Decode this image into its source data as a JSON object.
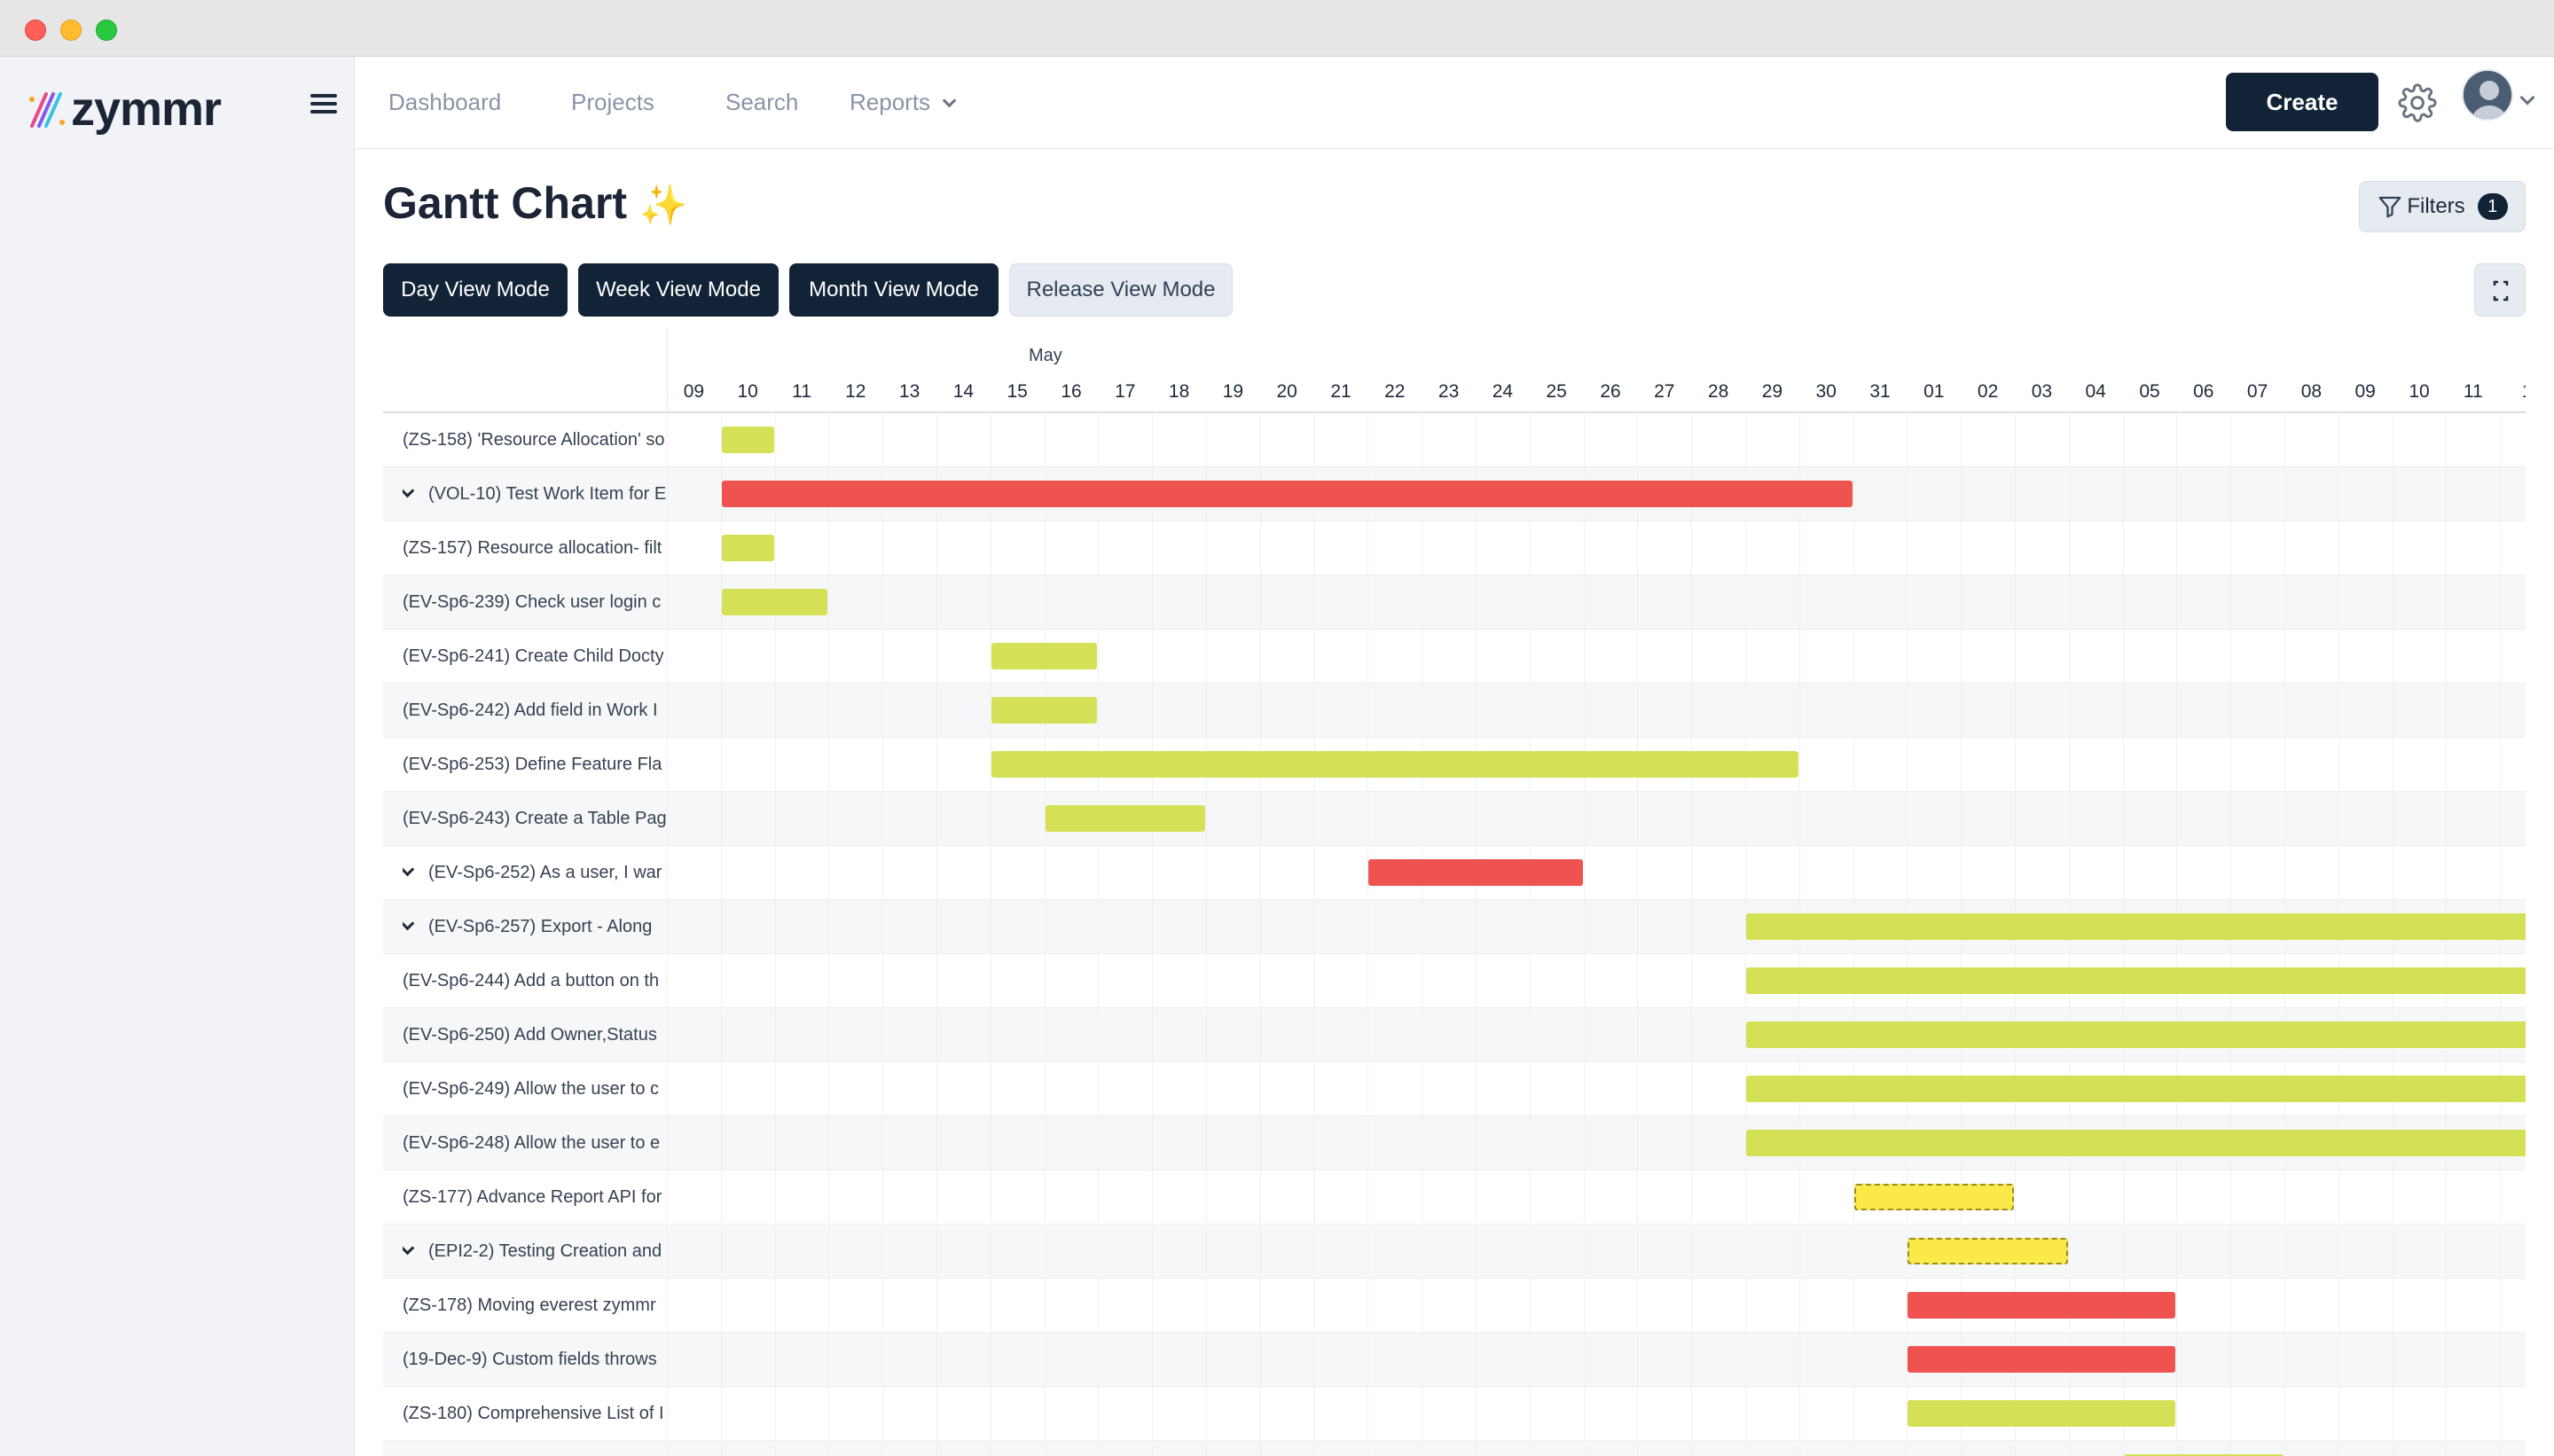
{
  "app": {
    "name": "zymmr"
  },
  "nav": {
    "dashboard": "Dashboard",
    "projects": "Projects",
    "search": "Search",
    "reports": "Reports",
    "create": "Create"
  },
  "page": {
    "title": "Gantt Chart",
    "title_emoji": "✨",
    "filters_label": "Filters",
    "filters_count": "1"
  },
  "view_modes": [
    {
      "label": "Day View Mode",
      "active": true
    },
    {
      "label": "Week View Mode",
      "active": true
    },
    {
      "label": "Month View Mode",
      "active": true
    },
    {
      "label": "Release View Mode",
      "active": false
    }
  ],
  "timeline": {
    "month": "May",
    "days": [
      "09",
      "10",
      "11",
      "12",
      "13",
      "14",
      "15",
      "16",
      "17",
      "18",
      "19",
      "20",
      "21",
      "22",
      "23",
      "24",
      "25",
      "26",
      "27",
      "28",
      "29",
      "30",
      "31",
      "01",
      "02",
      "03",
      "04",
      "05",
      "06",
      "07",
      "08",
      "09",
      "10",
      "11",
      "1"
    ]
  },
  "tasks": [
    {
      "label": "(ZS-158) 'Resource Allocation' so",
      "expandable": false,
      "start": 1,
      "end": 2,
      "color": "green"
    },
    {
      "label": "(VOL-10) Test Work Item for E",
      "expandable": true,
      "start": 1,
      "end": 22,
      "color": "red"
    },
    {
      "label": "(ZS-157) Resource allocation- filt",
      "expandable": false,
      "start": 1,
      "end": 2,
      "color": "green"
    },
    {
      "label": "(EV-Sp6-239) Check user login c",
      "expandable": false,
      "start": 1,
      "end": 3,
      "color": "green"
    },
    {
      "label": "(EV-Sp6-241) Create Child Docty",
      "expandable": false,
      "start": 6,
      "end": 8,
      "color": "green"
    },
    {
      "label": "(EV-Sp6-242) Add field in Work I",
      "expandable": false,
      "start": 6,
      "end": 8,
      "color": "green"
    },
    {
      "label": "(EV-Sp6-253) Define Feature Fla",
      "expandable": false,
      "start": 6,
      "end": 21,
      "color": "green"
    },
    {
      "label": "(EV-Sp6-243) Create a Table Pag",
      "expandable": false,
      "start": 7,
      "end": 10,
      "color": "green"
    },
    {
      "label": "(EV-Sp6-252) As a user, I war",
      "expandable": true,
      "start": 13,
      "end": 17,
      "color": "red"
    },
    {
      "label": "(EV-Sp6-257) Export - Along",
      "expandable": true,
      "start": 20,
      "end": 35,
      "color": "green"
    },
    {
      "label": "(EV-Sp6-244) Add a button on th",
      "expandable": false,
      "start": 20,
      "end": 35,
      "color": "green"
    },
    {
      "label": "(EV-Sp6-250) Add Owner,Status",
      "expandable": false,
      "start": 20,
      "end": 35,
      "color": "green"
    },
    {
      "label": "(EV-Sp6-249) Allow the user to c",
      "expandable": false,
      "start": 20,
      "end": 35,
      "color": "green"
    },
    {
      "label": "(EV-Sp6-248) Allow the user to e",
      "expandable": false,
      "start": 20,
      "end": 35,
      "color": "green"
    },
    {
      "label": "(ZS-177) Advance Report API for",
      "expandable": false,
      "start": 22,
      "end": 25,
      "color": "yellow"
    },
    {
      "label": "(EPI2-2) Testing Creation and",
      "expandable": true,
      "start": 23,
      "end": 26,
      "color": "yellow"
    },
    {
      "label": "(ZS-178) Moving everest zymmr",
      "expandable": false,
      "start": 23,
      "end": 28,
      "color": "red"
    },
    {
      "label": "(19-Dec-9) Custom fields throws",
      "expandable": false,
      "start": 23,
      "end": 28,
      "color": "red"
    },
    {
      "label": "(ZS-180) Comprehensive List of I",
      "expandable": false,
      "start": 23,
      "end": 28,
      "color": "green"
    },
    {
      "label": "",
      "expandable": false,
      "start": 27,
      "end": 30,
      "color": "green"
    }
  ],
  "colors": {
    "green": "#d4e157",
    "red": "#ef5350",
    "yellow": "#fbe94a",
    "primary": "#122338"
  }
}
